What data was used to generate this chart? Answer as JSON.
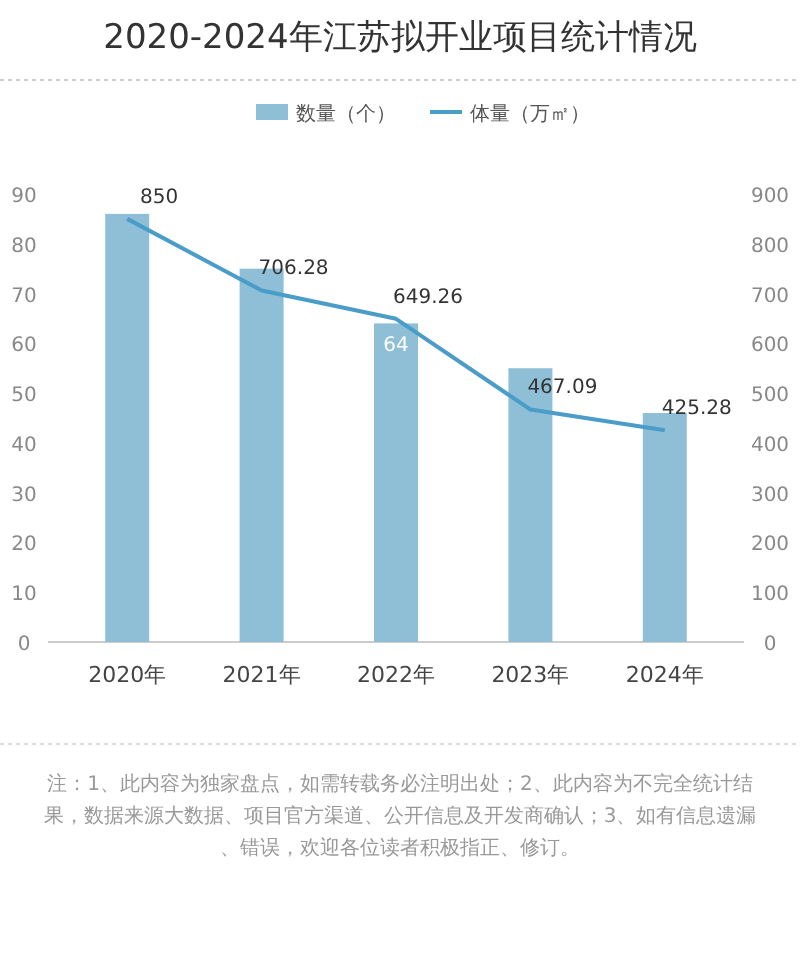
{
  "chart_data": {
    "type": "bar",
    "title": "2020-2024年江苏拟开业项目统计情况",
    "categories": [
      "2020年",
      "2021年",
      "2022年",
      "2023年",
      "2024年"
    ],
    "series": [
      {
        "name": "数量（个）",
        "color": "#8fbfd6",
        "values": [
          86,
          75,
          64,
          55,
          46
        ],
        "value_labels": [
          null,
          null,
          "64",
          null,
          null
        ]
      },
      {
        "name": "体量（万㎡）",
        "type": "line",
        "axis": "y2",
        "color": "#4a9cc9",
        "values": [
          850,
          706.28,
          649.26,
          467.09,
          425.28
        ],
        "data_labels": true,
        "marker": "none"
      }
    ],
    "ylim": [
      0,
      90
    ],
    "yticks": [
      0,
      10,
      20,
      30,
      40,
      50,
      60,
      70,
      80,
      90
    ],
    "y2lim": [
      0,
      900
    ],
    "y2ticks": [
      0,
      100,
      200,
      300,
      400,
      500,
      600,
      700,
      800,
      900
    ],
    "legend": "top",
    "grid": false,
    "annotations": [
      "注：1、此内容为独家盘点，如需转载务必注明出处；2、此内容为不完全统计结果，数据来源大数据、项目官方渠道、公开信息及开发商确认；3、如有信息遗漏、错误，欢迎各位读者积极指正、修订。"
    ]
  }
}
